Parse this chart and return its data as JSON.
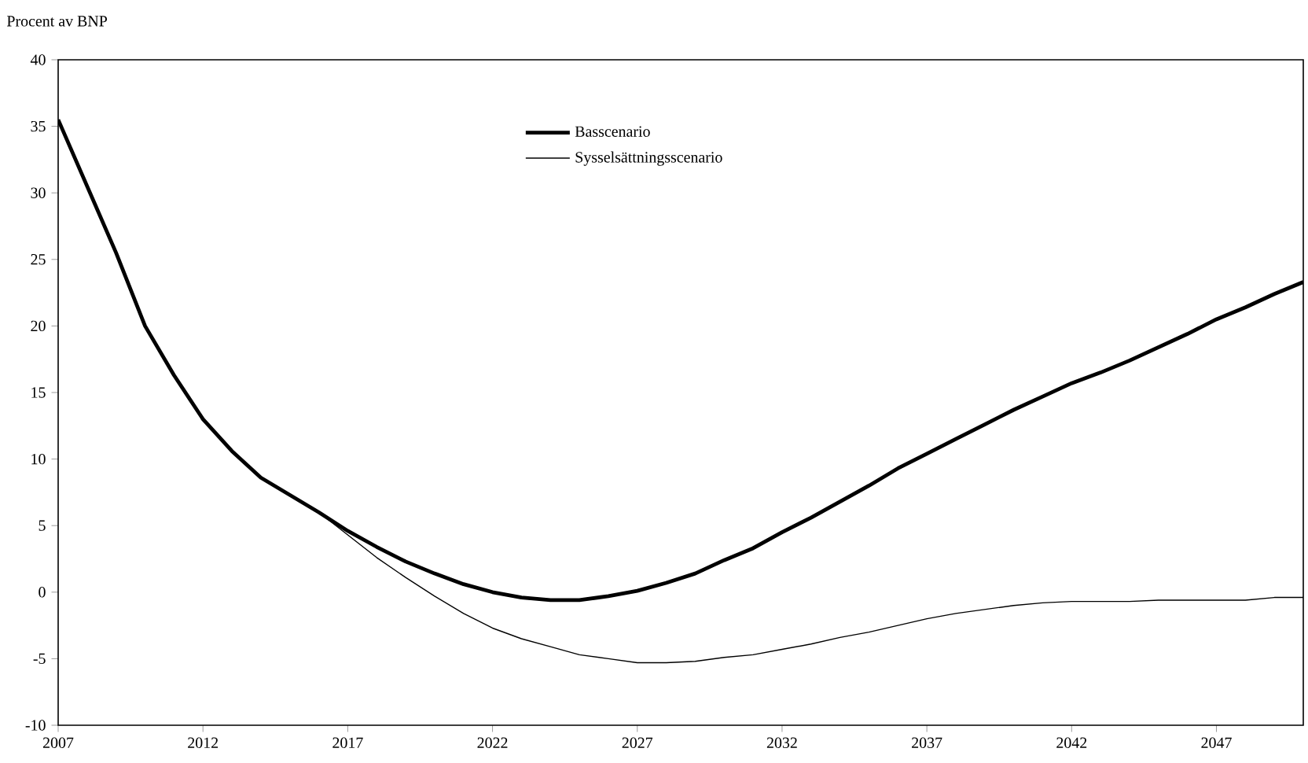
{
  "chart_data": {
    "type": "line",
    "ylabel": "Procent av BNP",
    "legend": "top",
    "grid": false,
    "x": [
      2007,
      2008,
      2009,
      2010,
      2011,
      2012,
      2013,
      2014,
      2015,
      2016,
      2017,
      2018,
      2019,
      2020,
      2021,
      2022,
      2023,
      2024,
      2025,
      2026,
      2027,
      2028,
      2029,
      2030,
      2031,
      2032,
      2033,
      2034,
      2035,
      2036,
      2037,
      2038,
      2039,
      2040,
      2041,
      2042,
      2043,
      2044,
      2045,
      2046,
      2047,
      2048,
      2049,
      2050
    ],
    "series": [
      {
        "name": "Basscenario",
        "color": "#000000",
        "values": [
          35.5,
          30.5,
          25.5,
          20,
          16.3,
          13,
          10.6,
          8.6,
          7.3,
          6,
          4.6,
          3.4,
          2.3,
          1.4,
          0.6,
          0,
          -0.4,
          -0.6,
          -0.6,
          -0.3,
          0.1,
          0.7,
          1.4,
          2.4,
          3.3,
          4.5,
          5.6,
          6.8,
          8,
          9.3,
          10.4,
          11.5,
          12.6,
          13.7,
          14.7,
          15.7,
          16.5,
          17.4,
          18.4,
          19.4,
          20.5,
          21.4,
          22.4,
          23.3
        ]
      },
      {
        "name": "Sysselsättningsscenario",
        "color": "#000000",
        "values": [
          35.5,
          30.5,
          25.5,
          20,
          16.3,
          13,
          10.6,
          8.6,
          7.3,
          6,
          4.3,
          2.6,
          1.1,
          -0.3,
          -1.6,
          -2.7,
          -3.5,
          -4.1,
          -4.7,
          -5,
          -5.3,
          -5.3,
          -5.2,
          -4.9,
          -4.7,
          -4.3,
          -3.9,
          -3.4,
          -3,
          -2.5,
          -2,
          -1.6,
          -1.3,
          -1,
          -0.8,
          -0.7,
          -0.7,
          -0.7,
          -0.6,
          -0.6,
          -0.6,
          -0.6,
          -0.4,
          -0.4
        ]
      }
    ],
    "xlim": [
      2007,
      2050
    ],
    "xticks": [
      2007,
      2012,
      2017,
      2022,
      2027,
      2032,
      2037,
      2042,
      2047
    ],
    "ylim": [
      -10,
      40
    ],
    "yticks": [
      -10,
      -5,
      0,
      5,
      10,
      15,
      20,
      25,
      30,
      35,
      40
    ]
  }
}
